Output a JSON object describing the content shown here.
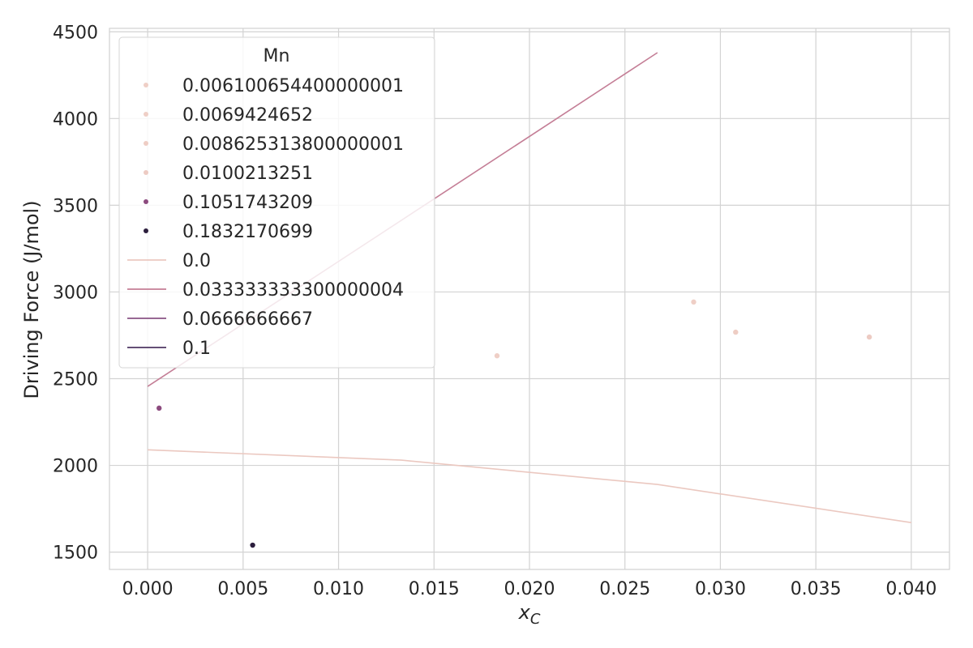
{
  "chart_data": {
    "type": "scatter",
    "xlabel": "x_C",
    "ylabel": "Driving Force (J/mol)",
    "xlim": [
      -0.002,
      0.042
    ],
    "ylim": [
      1400,
      4520
    ],
    "grid": true,
    "legend_placement": "upper-left",
    "x_ticks": [
      "0.000",
      "0.005",
      "0.010",
      "0.015",
      "0.020",
      "0.025",
      "0.030",
      "0.035",
      "0.040"
    ],
    "y_ticks": [
      "1500",
      "2000",
      "2500",
      "3000",
      "3500",
      "4000",
      "4500"
    ],
    "legend": {
      "title": "Mn",
      "point_entries": [
        {
          "label": "0.006100654400000001",
          "color": "#efcfc6"
        },
        {
          "label": "0.0069424652",
          "color": "#efcfc6"
        },
        {
          "label": "0.008625313800000001",
          "color": "#eecdc4"
        },
        {
          "label": "0.0100213251",
          "color": "#edcbc3"
        },
        {
          "label": "0.1051743209",
          "color": "#8c4a7e"
        },
        {
          "label": "0.1832170699",
          "color": "#2c1e3d"
        }
      ],
      "line_entries": [
        {
          "label": "0.0",
          "color": "#ebc8c0"
        },
        {
          "label": "0.033333333300000004",
          "color": "#c47e96"
        },
        {
          "label": "0.0666666667",
          "color": "#8a5285"
        },
        {
          "label": "0.1",
          "color": "#4e3662"
        }
      ]
    },
    "points": [
      {
        "x": 0.0006,
        "y": 2330,
        "group": "0.1051743209",
        "color": "#8c4a7e"
      },
      {
        "x": 0.0055,
        "y": 1540,
        "group": "0.1832170699",
        "color": "#2c1e3d"
      },
      {
        "x": 0.0183,
        "y": 2632,
        "color": "#efcfc6"
      },
      {
        "x": 0.0286,
        "y": 2942,
        "color": "#efcfc6"
      },
      {
        "x": 0.0308,
        "y": 2768,
        "color": "#eecdc4"
      },
      {
        "x": 0.0378,
        "y": 2740,
        "color": "#edcbc3"
      }
    ],
    "series": [
      {
        "name": "0.0",
        "color": "#ebc8c0",
        "x": [
          0.0,
          0.0133,
          0.0267,
          0.04
        ],
        "y": [
          2090,
          2030,
          1890,
          1670
        ]
      },
      {
        "name": "0.033333333300000004",
        "color": "#c47e96",
        "x": [
          0.0,
          0.0267
        ],
        "y": [
          2455,
          4380
        ]
      }
    ]
  }
}
